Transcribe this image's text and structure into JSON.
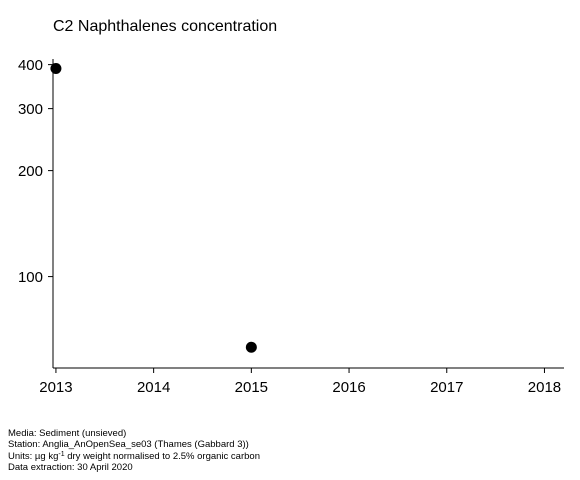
{
  "chart_data": {
    "type": "scatter",
    "title": "C2 Naphthalenes concentration",
    "xlabel": "",
    "ylabel": "",
    "x_ticks": [
      "2013",
      "2014",
      "2015",
      "2016",
      "2017",
      "2018"
    ],
    "xlim": [
      2012.97,
      2018.2
    ],
    "y_ticks": [
      100,
      200,
      300,
      400
    ],
    "y_scale": "log",
    "ylim": [
      55,
      415
    ],
    "series": [
      {
        "x": [
          2013,
          2015
        ],
        "y": [
          390,
          63
        ]
      }
    ],
    "marker": "filled-circle",
    "marker_color": "#000000",
    "grid": false,
    "legend": "none"
  },
  "footer": {
    "media": "Media: Sediment (unsieved)",
    "station": "Station: Anglia_AnOpenSea_se03 (Thames (Gabbard 3))",
    "units_prefix": "Units:  µg kg",
    "units_sup": "-1",
    "units_suffix": " dry weight normalised to 2.5% organic carbon",
    "extraction": "Data extraction: 30 April 2020"
  }
}
